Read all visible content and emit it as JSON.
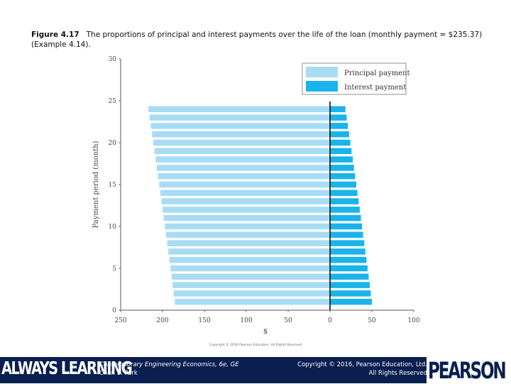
{
  "caption": {
    "label": "Figure 4.17",
    "text": "The proportions of principal and interest payments over the life of the loan (monthly payment = $235.37) (Example 4.14)."
  },
  "chart_data": {
    "type": "bar",
    "orientation": "horizontal",
    "xlabel": "$",
    "ylabel": "Payment period (month)",
    "x_ticks": [
      "250",
      "200",
      "150",
      "100",
      "50",
      "0",
      "50",
      "100"
    ],
    "y_ticks": [
      "0",
      "5",
      "10",
      "15",
      "20",
      "25",
      "30"
    ],
    "xlim": [
      -250,
      100
    ],
    "ylim": [
      0,
      30
    ],
    "legend_position": "top-right",
    "legend": [
      "Principal payment",
      "Interest payment"
    ],
    "colors": {
      "principal": "#a8dcf5",
      "interest": "#1ab4ea"
    },
    "categories": [
      1,
      2,
      3,
      4,
      5,
      6,
      7,
      8,
      9,
      10,
      11,
      12,
      13,
      14,
      15,
      16,
      17,
      18,
      19,
      20,
      21,
      22,
      23,
      24
    ],
    "series": [
      {
        "name": "Principal payment",
        "values": [
          185.37,
          186.64,
          187.92,
          189.21,
          190.51,
          191.82,
          193.14,
          194.46,
          195.8,
          197.14,
          198.49,
          199.86,
          201.23,
          202.61,
          204.0,
          205.4,
          206.81,
          208.23,
          209.66,
          211.1,
          212.54,
          214.0,
          215.47,
          216.95
        ]
      },
      {
        "name": "Interest payment",
        "values": [
          50.0,
          48.73,
          47.45,
          46.16,
          44.86,
          43.55,
          42.23,
          40.91,
          39.57,
          38.23,
          36.88,
          35.51,
          34.14,
          32.76,
          31.37,
          29.97,
          28.56,
          27.14,
          25.71,
          24.27,
          22.83,
          21.37,
          19.9,
          18.42
        ]
      }
    ]
  },
  "watermark": "Copyright © 2016 Pearson Education, All Rights Reserved",
  "footer": {
    "slogan": "ALWAYS LEARNING",
    "book": "Contemporary Engineering Economics, 6e, GE",
    "author": "Chan S. Park",
    "copyright": "Copyright © 2016, Pearson Education, Ltd.",
    "rights": "All Rights Reserved",
    "brand": "PEARSON"
  }
}
